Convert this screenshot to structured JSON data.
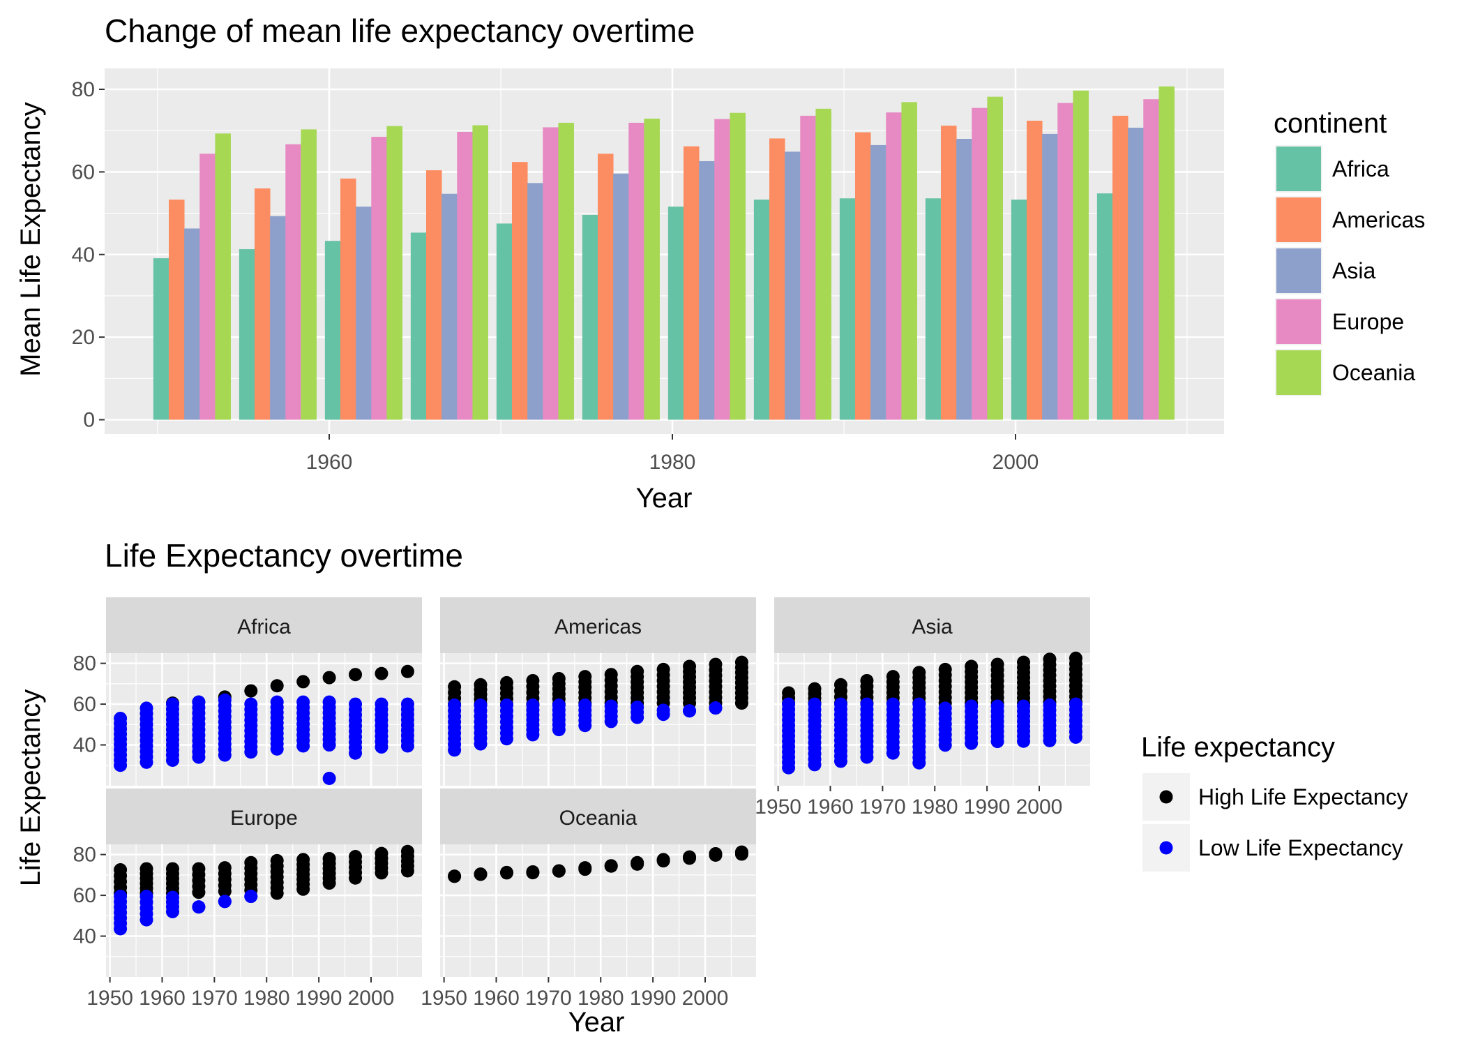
{
  "chart_data": [
    {
      "type": "bar",
      "title": "Change of mean life expectancy overtime",
      "xlabel": "Year",
      "ylabel": "Mean Life Expectancy",
      "x_tick_labels": [
        "1960",
        "1980",
        "2000"
      ],
      "y_tick_labels": [
        "0",
        "20",
        "40",
        "60",
        "80"
      ],
      "ylim": [
        0,
        80
      ],
      "grid": true,
      "legend": {
        "title": "continent",
        "position": "right"
      },
      "categories": [
        1952,
        1957,
        1962,
        1967,
        1972,
        1977,
        1982,
        1987,
        1992,
        1997,
        2002,
        2007
      ],
      "series": [
        {
          "name": "Africa",
          "color": "#66c2a5",
          "values": [
            39.1,
            41.3,
            43.3,
            45.3,
            47.5,
            49.6,
            51.6,
            53.3,
            53.6,
            53.6,
            53.3,
            54.8
          ]
        },
        {
          "name": "Americas",
          "color": "#fc8d62",
          "values": [
            53.3,
            56.0,
            58.4,
            60.4,
            62.4,
            64.4,
            66.2,
            68.1,
            69.6,
            71.2,
            72.4,
            73.6
          ]
        },
        {
          "name": "Asia",
          "color": "#8da0cb",
          "values": [
            46.3,
            49.3,
            51.6,
            54.7,
            57.3,
            59.6,
            62.6,
            64.9,
            66.5,
            68.0,
            69.2,
            70.7
          ]
        },
        {
          "name": "Europe",
          "color": "#e78ac3",
          "values": [
            64.4,
            66.7,
            68.5,
            69.7,
            70.8,
            71.9,
            72.8,
            73.6,
            74.4,
            75.5,
            76.7,
            77.6
          ]
        },
        {
          "name": "Oceania",
          "color": "#a6d854",
          "values": [
            69.3,
            70.3,
            71.1,
            71.3,
            71.9,
            72.9,
            74.3,
            75.3,
            76.9,
            78.2,
            79.7,
            80.7
          ]
        }
      ]
    },
    {
      "type": "scatter",
      "title": "Life Expectancy overtime",
      "xlabel": "Year",
      "ylabel": "Life Expectancy",
      "x_tick_labels": [
        "1950",
        "1960",
        "1970",
        "1980",
        "1990",
        "2000"
      ],
      "y_tick_labels": [
        "40",
        "60",
        "80"
      ],
      "xlim": [
        1949.25,
        2009.75
      ],
      "ylim": [
        20.0,
        85.0
      ],
      "grid": true,
      "legend": {
        "title": "Life expectancy",
        "position": "right",
        "items": [
          {
            "label": "High Life Expectancy",
            "color": "#000000"
          },
          {
            "label": "Low Life Expectancy",
            "color": "#0000ff"
          }
        ]
      },
      "facets": [
        {
          "name": "Africa",
          "high": [
            [
              1962,
              60.5
            ],
            [
              1967,
              61
            ],
            [
              1972,
              63.5
            ],
            [
              1977,
              66.5
            ],
            [
              1982,
              69
            ],
            [
              1987,
              71
            ],
            [
              1992,
              73
            ],
            [
              1997,
              74.5
            ],
            [
              2002,
              75
            ],
            [
              2007,
              76
            ]
          ],
          "low_range": [
            [
              1952,
              30,
              53
            ],
            [
              1957,
              31.5,
              58
            ],
            [
              1962,
              32.5,
              60
            ],
            [
              1967,
              34,
              61
            ],
            [
              1972,
              35,
              62
            ],
            [
              1977,
              36.5,
              60
            ],
            [
              1982,
              38,
              61
            ],
            [
              1987,
              39.5,
              61
            ],
            [
              1992,
              40,
              61
            ],
            [
              1997,
              36,
              60
            ],
            [
              2002,
              39,
              60
            ],
            [
              2007,
              39.5,
              60
            ]
          ],
          "low_outliers": [
            [
              1992,
              23.6
            ]
          ]
        },
        {
          "name": "Americas",
          "high_range": [
            [
              1952,
              60,
              68.5
            ],
            [
              1957,
              60,
              69.5
            ],
            [
              1962,
              60,
              70.5
            ],
            [
              1967,
              60,
              71.5
            ],
            [
              1972,
              60,
              72.5
            ],
            [
              1977,
              60.5,
              73.5
            ],
            [
              1982,
              60.5,
              74.5
            ],
            [
              1987,
              60.5,
              76
            ],
            [
              1992,
              60.5,
              77
            ],
            [
              1997,
              60.5,
              78.5
            ],
            [
              2002,
              60.5,
              79.5
            ],
            [
              2007,
              60.5,
              80.5
            ]
          ],
          "low_range": [
            [
              1952,
              37.5,
              59.5
            ],
            [
              1957,
              40.5,
              59.5
            ],
            [
              1962,
              43,
              59.5
            ],
            [
              1967,
              45,
              59.5
            ],
            [
              1972,
              47.5,
              59.5
            ],
            [
              1977,
              49.5,
              59.5
            ],
            [
              1982,
              51.5,
              59
            ],
            [
              1987,
              53.5,
              58.5
            ],
            [
              1992,
              55,
              57
            ],
            [
              1997,
              56.7,
              56.7
            ],
            [
              2002,
              58.1,
              58.1
            ]
          ]
        },
        {
          "name": "Asia",
          "high_range": [
            [
              1952,
              60.5,
              65.5
            ],
            [
              1957,
              60.5,
              67.5
            ],
            [
              1962,
              60.5,
              69.5
            ],
            [
              1967,
              60.5,
              71.5
            ],
            [
              1972,
              60.5,
              73.5
            ],
            [
              1977,
              60.5,
              75.5
            ],
            [
              1982,
              60.5,
              77
            ],
            [
              1987,
              60.5,
              78.5
            ],
            [
              1992,
              60.5,
              79.5
            ],
            [
              1997,
              60.5,
              80.5
            ],
            [
              2002,
              61,
              82
            ],
            [
              2007,
              61,
              82.5
            ]
          ],
          "low_range": [
            [
              1952,
              28.8,
              60
            ],
            [
              1957,
              30.3,
              60
            ],
            [
              1962,
              32,
              60
            ],
            [
              1967,
              34,
              60
            ],
            [
              1972,
              36,
              60
            ],
            [
              1977,
              31.2,
              60
            ],
            [
              1982,
              39.9,
              58
            ],
            [
              1987,
              40.8,
              59
            ],
            [
              1992,
              41.7,
              59
            ],
            [
              1997,
              41.8,
              59
            ],
            [
              2002,
              42.1,
              59.5
            ],
            [
              2007,
              43.8,
              60
            ]
          ]
        },
        {
          "name": "Europe",
          "high_range": [
            [
              1952,
              61,
              72.5
            ],
            [
              1957,
              61,
              73
            ],
            [
              1962,
              61,
              73
            ],
            [
              1967,
              61.5,
              73
            ],
            [
              1972,
              62,
              73.5
            ],
            [
              1977,
              62.5,
              76
            ],
            [
              1982,
              61,
              77
            ],
            [
              1987,
              63,
              77.5
            ],
            [
              1992,
              66,
              78
            ],
            [
              1997,
              68.5,
              79
            ],
            [
              2002,
              71,
              80.5
            ],
            [
              2007,
              72,
              81.5
            ]
          ],
          "low_range": [
            [
              1952,
              43.6,
              59.5
            ],
            [
              1957,
              48,
              59.5
            ],
            [
              1962,
              52,
              59
            ],
            [
              1967,
              54.3,
              54.3
            ],
            [
              1972,
              57,
              57
            ],
            [
              1977,
              59.5,
              59.5
            ]
          ]
        },
        {
          "name": "Oceania",
          "high_range": [
            [
              1952,
              69.3,
              69.4
            ],
            [
              1957,
              70.3,
              70.4
            ],
            [
              1962,
              71,
              71.2
            ],
            [
              1967,
              71.1,
              71.5
            ],
            [
              1972,
              71.9,
              72
            ],
            [
              1977,
              72.8,
              73.5
            ],
            [
              1982,
              74.3,
              74.5
            ],
            [
              1987,
              75.3,
              76
            ],
            [
              1992,
              76.9,
              77.5
            ],
            [
              1997,
              78.2,
              78.8
            ],
            [
              2002,
              79.7,
              80.4
            ],
            [
              2007,
              80.2,
              81.2
            ]
          ]
        }
      ]
    }
  ]
}
